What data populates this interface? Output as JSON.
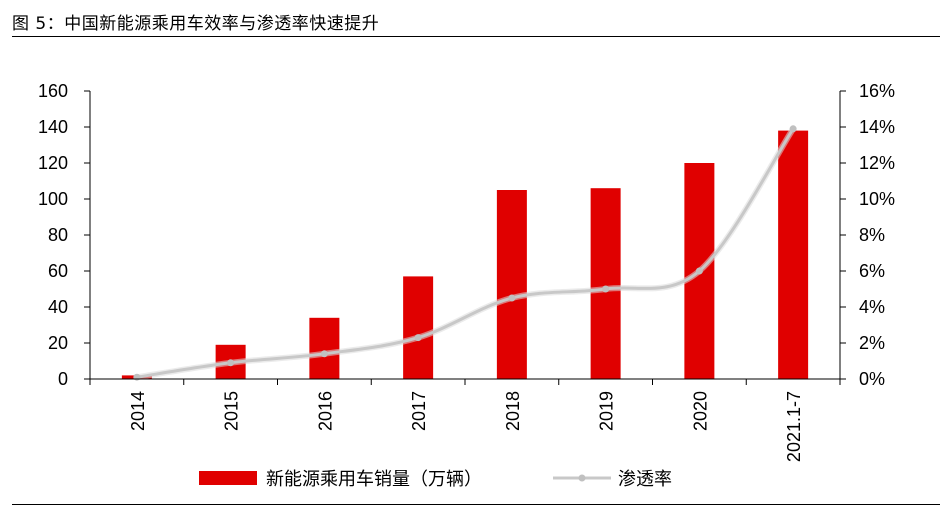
{
  "figure": {
    "title": "图 5：中国新能源乘用车效率与渗透率快速提升"
  },
  "chart_data": {
    "type": "bar",
    "categories": [
      "2014",
      "2015",
      "2016",
      "2017",
      "2018",
      "2019",
      "2020",
      "2021.1-7"
    ],
    "series": [
      {
        "name": "新能源乘用车销量（万辆）",
        "type": "bar",
        "axis": "left",
        "color": "#e00000",
        "values": [
          2,
          19,
          34,
          57,
          105,
          106,
          120,
          138
        ]
      },
      {
        "name": "渗透率",
        "type": "line",
        "axis": "right",
        "color": "#c8c8c8",
        "values": [
          0.1,
          0.9,
          1.4,
          2.3,
          4.5,
          5.0,
          6.0,
          13.9
        ]
      }
    ],
    "y_left": {
      "min": 0,
      "max": 160,
      "step": 20,
      "ticks": [
        "0",
        "20",
        "40",
        "60",
        "80",
        "100",
        "120",
        "140",
        "160"
      ]
    },
    "y_right": {
      "min": 0,
      "max": 16,
      "step": 2,
      "ticks": [
        "0%",
        "2%",
        "4%",
        "6%",
        "8%",
        "10%",
        "12%",
        "14%",
        "16%"
      ]
    },
    "grid": false,
    "legend_position": "bottom"
  }
}
